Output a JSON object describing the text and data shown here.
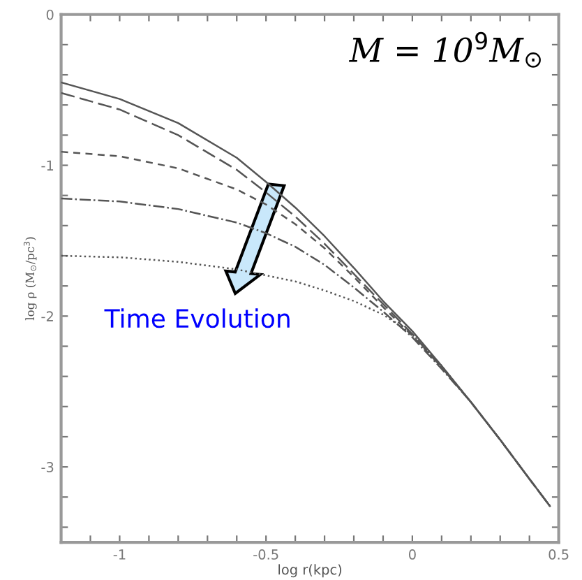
{
  "chart_data": {
    "type": "line",
    "xlabel": "log r(kpc)",
    "ylabel": "log ρ (M$_{⊙}$/pc$^{3}$)",
    "x": [
      -1.2,
      -1.0,
      -0.8,
      -0.6,
      -0.5,
      -0.4,
      -0.3,
      -0.2,
      -0.1,
      0,
      0.1,
      0.2,
      0.3,
      0.4,
      0.47
    ],
    "series": [
      {
        "color": "#555555",
        "line_style": "solid",
        "values": [
          -0.45,
          -0.56,
          -0.72,
          -0.95,
          -1.11,
          -1.28,
          -1.47,
          -1.68,
          -1.9,
          -2.1,
          -2.33,
          -2.57,
          -2.82,
          -3.08,
          -3.26
        ]
      },
      {
        "color": "#555555",
        "line_style": "dashed",
        "values": [
          -0.52,
          -0.63,
          -0.8,
          -1.03,
          -1.18,
          -1.34,
          -1.52,
          -1.72,
          -1.92,
          -2.12,
          -2.34,
          -2.57,
          -2.82,
          -3.08,
          -3.26
        ]
      },
      {
        "color": "#555555",
        "line_style": "dashed",
        "values": [
          -0.91,
          -0.94,
          -1.02,
          -1.16,
          -1.26,
          -1.39,
          -1.55,
          -1.74,
          -1.94,
          -2.13,
          -2.34,
          -2.57,
          -2.82,
          -3.08,
          -3.26
        ]
      },
      {
        "color": "#555555",
        "line_style": "dashdot",
        "values": [
          -1.22,
          -1.24,
          -1.29,
          -1.38,
          -1.45,
          -1.54,
          -1.66,
          -1.81,
          -1.97,
          -2.14,
          -2.35,
          -2.57,
          -2.82,
          -3.08,
          -3.26
        ]
      },
      {
        "color": "#555555",
        "line_style": "dotted",
        "values": [
          -1.6,
          -1.61,
          -1.64,
          -1.69,
          -1.73,
          -1.77,
          -1.83,
          -1.9,
          -1.99,
          -2.12,
          -2.33,
          -2.57,
          -2.82,
          -3.08,
          -3.26
        ]
      }
    ],
    "xlim": [
      -1.2,
      0.5
    ],
    "ylim": [
      -3.5,
      0
    ],
    "xticks": [
      {
        "value": -1.1,
        "label": null
      },
      -1,
      {
        "value": -0.9,
        "label": null
      },
      {
        "value": -0.8,
        "label": null
      },
      {
        "value": -0.7,
        "label": null
      },
      {
        "value": -0.6,
        "label": null
      },
      -0.5,
      {
        "value": -0.4,
        "label": null
      },
      {
        "value": -0.3,
        "label": null
      },
      {
        "value": -0.2,
        "label": null
      },
      {
        "value": -0.1,
        "label": null
      },
      0,
      {
        "value": 0.1,
        "label": null
      },
      {
        "value": 0.2,
        "label": null
      },
      {
        "value": 0.3,
        "label": null
      },
      {
        "value": 0.4,
        "label": null
      },
      0.5
    ],
    "yticks": [
      {
        "value": -3.4,
        "label": null
      },
      {
        "value": -3.2,
        "label": null
      },
      -3,
      {
        "value": -2.8,
        "label": null
      },
      {
        "value": -2.6,
        "label": null
      },
      {
        "value": -2.4,
        "label": null
      },
      {
        "value": -2.2,
        "label": null
      },
      -2,
      {
        "value": -1.8,
        "label": null
      },
      {
        "value": -1.6,
        "label": null
      },
      {
        "value": -1.4,
        "label": null
      },
      {
        "value": -1.2,
        "label": null
      },
      -1,
      {
        "value": -0.8,
        "label": null
      },
      {
        "value": -0.6,
        "label": null
      },
      {
        "value": -0.4,
        "label": null
      },
      {
        "value": -0.2,
        "label": null
      },
      0
    ],
    "grid": false,
    "legend": false,
    "annotations": [
      "M = 10$^{9}$M$_{⊙}$",
      "Time Evolution"
    ]
  }
}
